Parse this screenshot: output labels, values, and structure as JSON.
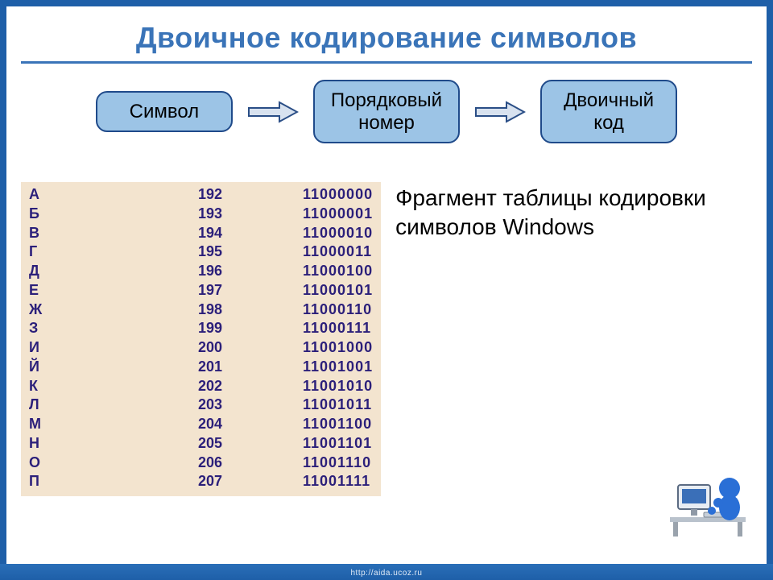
{
  "title": "Двоичное кодирование символов",
  "flow": {
    "box1": "Символ",
    "box2": "Порядковый номер",
    "box3": "Двоичный код",
    "box_bg": "#9cc4e6",
    "box_border": "#1f4a8a",
    "arrow_fill": "#d8e2ef",
    "arrow_stroke": "#2a4e86"
  },
  "table": {
    "panel_bg": "#f3e4cf",
    "text_color": "#2b1f7a",
    "rows": [
      {
        "sym": "А",
        "dec": "192",
        "bin": "11000000"
      },
      {
        "sym": "Б",
        "dec": "193",
        "bin": "11000001"
      },
      {
        "sym": "В",
        "dec": "194",
        "bin": "11000010"
      },
      {
        "sym": "Г",
        "dec": "195",
        "bin": "11000011"
      },
      {
        "sym": "Д",
        "dec": "196",
        "bin": "11000100"
      },
      {
        "sym": "Е",
        "dec": "197",
        "bin": "11000101"
      },
      {
        "sym": "Ж",
        "dec": "198",
        "bin": "11000110"
      },
      {
        "sym": "З",
        "dec": "199",
        "bin": "11000111"
      },
      {
        "sym": "И",
        "dec": "200",
        "bin": "11001000"
      },
      {
        "sym": "Й",
        "dec": "201",
        "bin": "11001001"
      },
      {
        "sym": "К",
        "dec": "202",
        "bin": "11001010"
      },
      {
        "sym": "Л",
        "dec": "203",
        "bin": "11001011"
      },
      {
        "sym": "М",
        "dec": "204",
        "bin": "11001100"
      },
      {
        "sym": "Н",
        "dec": "205",
        "bin": "11001101"
      },
      {
        "sym": "О",
        "dec": "206",
        "bin": "11001110"
      },
      {
        "sym": "П",
        "dec": "207",
        "bin": "11001111"
      }
    ]
  },
  "caption": "Фрагмент таблицы кодировки символов Windows",
  "footer_url": "http://aida.ucoz.ru",
  "colors": {
    "frame": "#1e5fa8",
    "title": "#3a74b8",
    "rule": "#3a74b8",
    "background": "#ffffff"
  }
}
